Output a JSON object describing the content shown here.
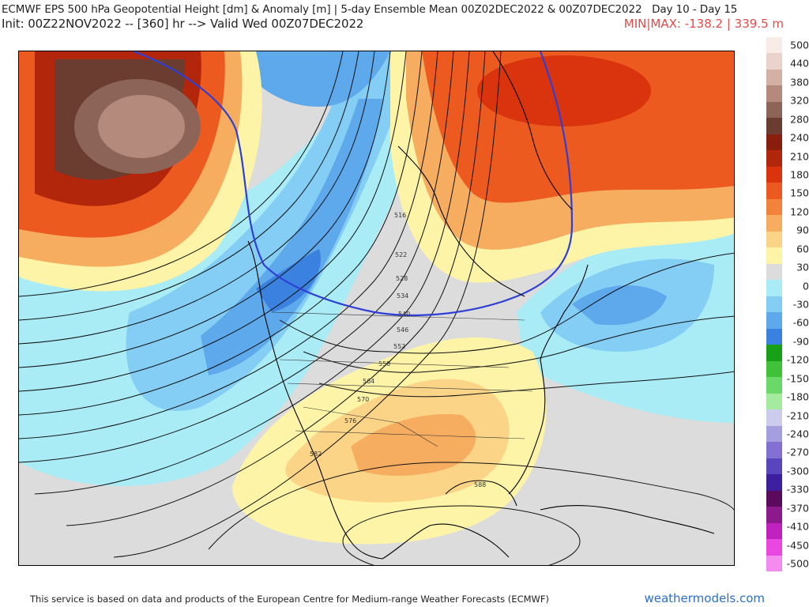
{
  "header": {
    "line1": "ECMWF EPS 500 hPa Geopotential Height [dm] & Anomaly [m] | 5-day Ensemble Mean 00Z02DEC2022 & 00Z07DEC2022",
    "days": "Day 10 - Day 15",
    "init": "Init: 00Z22NOV2022 -- [360] hr --> Valid Wed 00Z07DEC2022",
    "minmax": "MIN|MAX: -138.2 | 339.5 m"
  },
  "colorbar": {
    "labels": [
      "500",
      "440",
      "380",
      "320",
      "280",
      "240",
      "210",
      "180",
      "150",
      "120",
      "90",
      "60",
      "30",
      "0",
      "-30",
      "-60",
      "-90",
      "-120",
      "-150",
      "-180",
      "-210",
      "-240",
      "-270",
      "-300",
      "-330",
      "-370",
      "-410",
      "-450",
      "-500"
    ],
    "colors": [
      "#f7ece8",
      "#e9d3cb",
      "#d2b0a4",
      "#b48a7d",
      "#8c6558",
      "#6a3d30",
      "#8a1e0e",
      "#b2260b",
      "#d9340e",
      "#ed5a1f",
      "#f2833a",
      "#f6ad5f",
      "#fbd488",
      "#fdf4a8",
      "#dcdcdc",
      "#a9ecf5",
      "#84cdf4",
      "#5ea8ec",
      "#3b82e0",
      "#18a018",
      "#3fc23a",
      "#6bd86a",
      "#a5eb9f",
      "#ccccec",
      "#a59fe0",
      "#8270d2",
      "#5a46bc",
      "#3c1f9e",
      "#5c0a5c",
      "#8c1a8c",
      "#c022c0",
      "#e848e0",
      "#f48cf0"
    ]
  },
  "map": {
    "contour_labels": [
      "516",
      "522",
      "528",
      "534",
      "540",
      "546",
      "552",
      "558",
      "564",
      "570",
      "576",
      "582",
      "588"
    ]
  },
  "footer": {
    "credit": "This service is based on data and products of the European Centre for Medium-range Weather Forecasts (ECMWF)",
    "site": "weathermodels.com"
  }
}
